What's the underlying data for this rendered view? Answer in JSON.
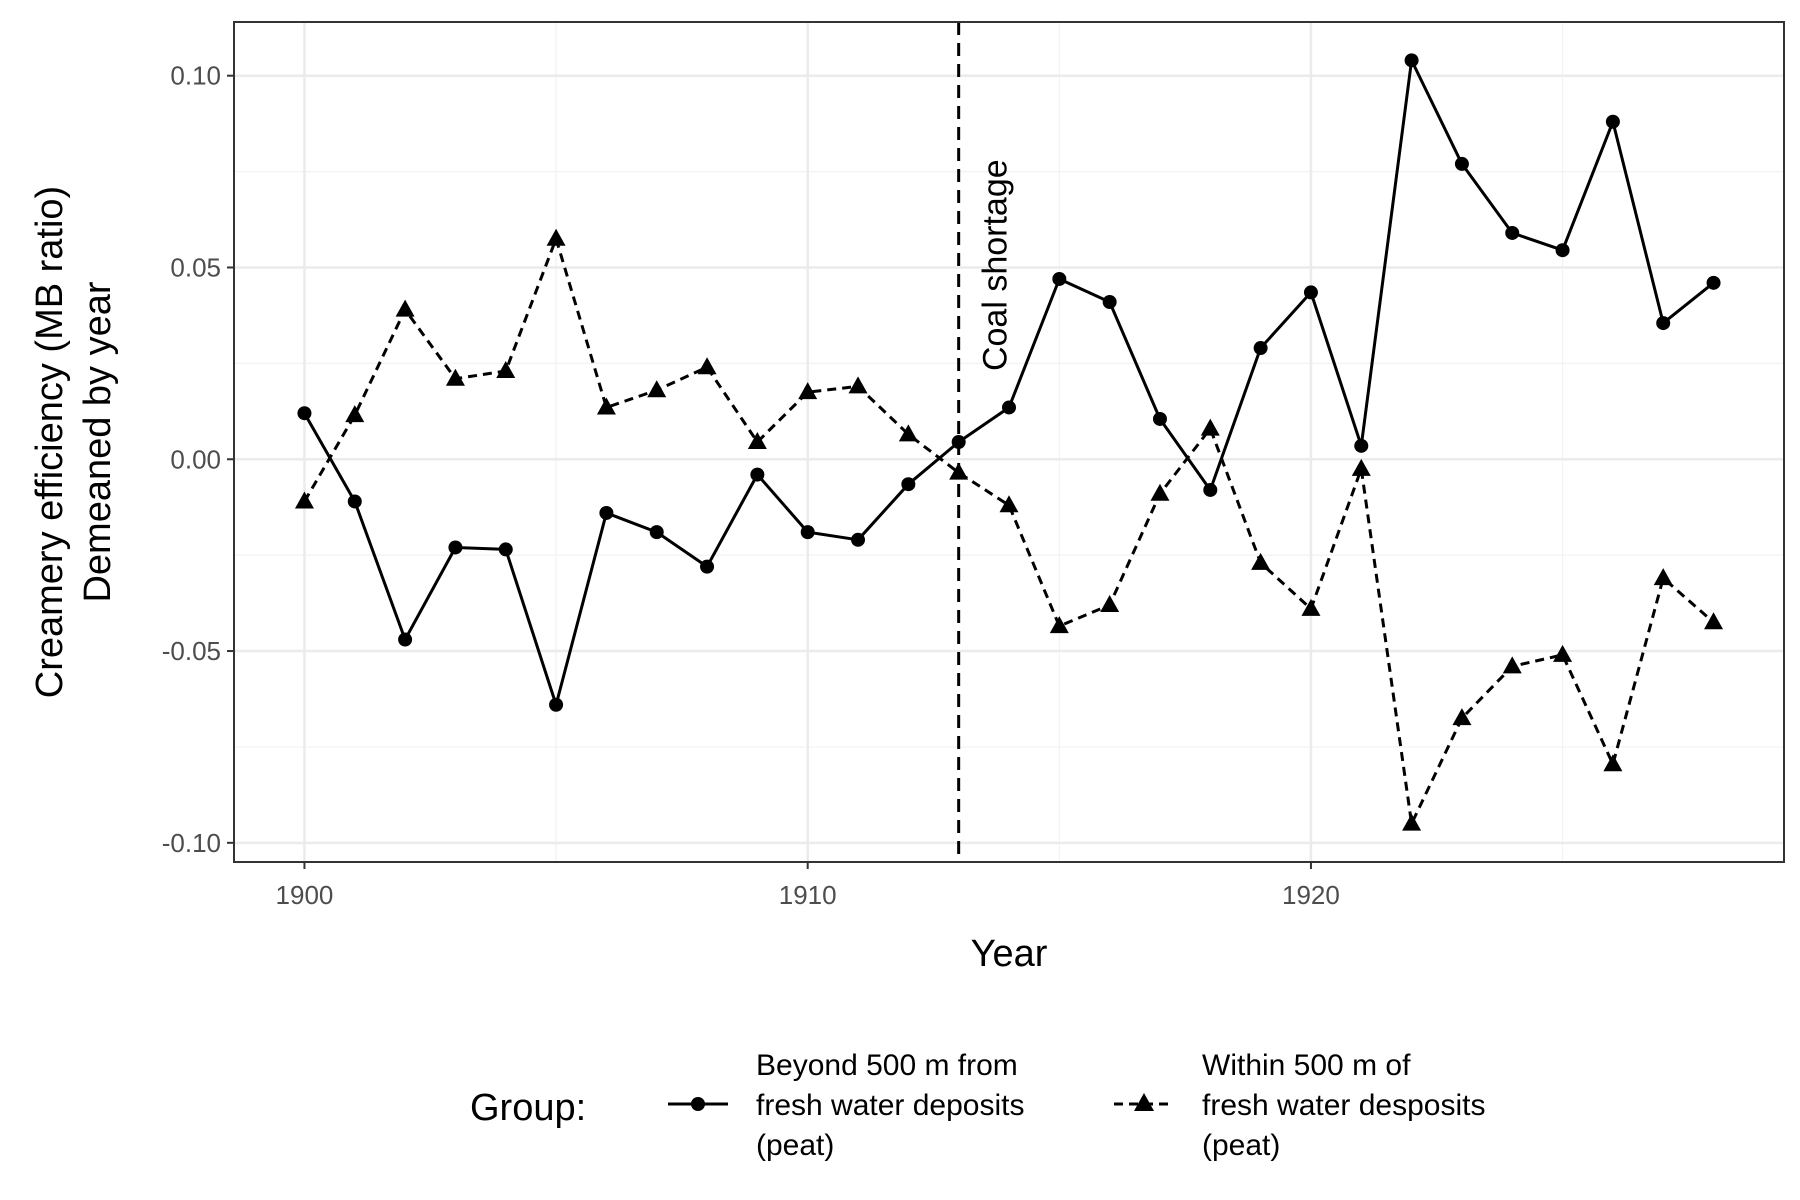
{
  "chart_data": {
    "type": "line",
    "title": "",
    "xlabel": "Year",
    "ylabel_lines": [
      "Creamery efficiency (MB ratio)",
      "Demeaned by year"
    ],
    "x_ticks": [
      1900,
      1910,
      1920
    ],
    "y_ticks": [
      0.1,
      0.05,
      0.0,
      -0.05,
      -0.1
    ],
    "y_tick_labels": [
      "0.10",
      "0.05",
      "0.00",
      "-0.05",
      "-0.10"
    ],
    "xlim": [
      1898.6,
      1929.4
    ],
    "ylim": [
      -0.105,
      0.114
    ],
    "grid": true,
    "legend_position": "bottom",
    "legend_title": "Group:",
    "annotation": {
      "text": "Coal shortage",
      "x": 1913
    },
    "x": [
      1900,
      1901,
      1902,
      1903,
      1904,
      1905,
      1906,
      1907,
      1908,
      1909,
      1910,
      1911,
      1912,
      1913,
      1914,
      1915,
      1916,
      1917,
      1918,
      1919,
      1920,
      1921,
      1922,
      1923,
      1924,
      1925,
      1926,
      1927,
      1928
    ],
    "series": [
      {
        "label_lines": [
          "Beyond 500 m from",
          "fresh water deposits",
          "(peat)"
        ],
        "marker": "circle",
        "line": "solid",
        "color": "#000000",
        "values": [
          0.012,
          -0.011,
          -0.047,
          -0.023,
          -0.0235,
          -0.064,
          -0.014,
          -0.019,
          -0.028,
          -0.004,
          -0.019,
          -0.021,
          -0.0065,
          0.0045,
          0.0135,
          0.047,
          0.041,
          0.0105,
          -0.008,
          0.029,
          0.0435,
          0.0035,
          0.104,
          0.077,
          0.059,
          0.0545,
          0.088,
          0.0355,
          0.046
        ]
      },
      {
        "label_lines": [
          "Within 500 m of",
          "fresh water desposits",
          "(peat)"
        ],
        "marker": "triangle",
        "line": "dashed",
        "color": "#000000",
        "values": [
          -0.011,
          0.0115,
          0.039,
          0.021,
          0.023,
          0.0575,
          0.0135,
          0.018,
          0.024,
          0.0045,
          0.0175,
          0.019,
          0.0065,
          -0.0035,
          -0.012,
          -0.0435,
          -0.038,
          -0.009,
          0.008,
          -0.027,
          -0.039,
          -0.0025,
          -0.095,
          -0.0675,
          -0.054,
          -0.051,
          -0.0795,
          -0.031,
          -0.0425
        ]
      }
    ]
  }
}
